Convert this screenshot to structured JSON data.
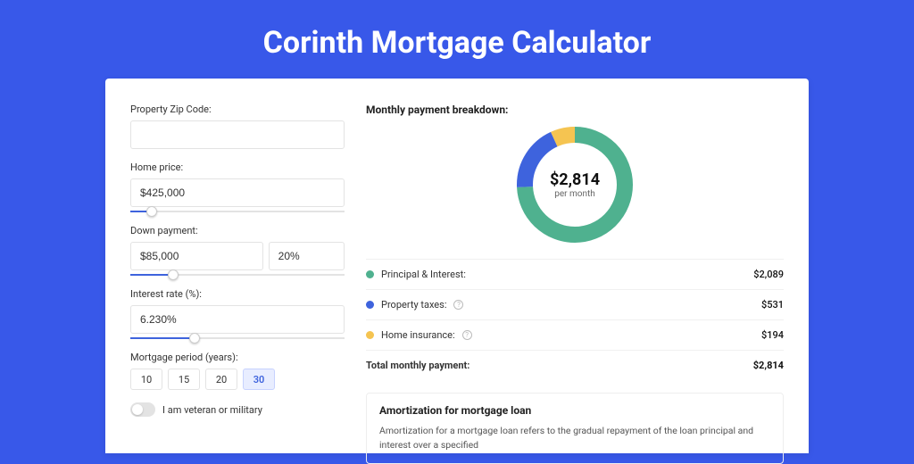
{
  "title": "Corinth Mortgage Calculator",
  "form": {
    "zip": {
      "label": "Property Zip Code:",
      "value": ""
    },
    "home_price": {
      "label": "Home price:",
      "value": "$425,000",
      "slider_pct": 10
    },
    "down": {
      "label": "Down payment:",
      "amount": "$85,000",
      "percent": "20%",
      "slider_pct": 20
    },
    "rate": {
      "label": "Interest rate (%):",
      "value": "6.230%",
      "slider_pct": 30
    },
    "period": {
      "label": "Mortgage period (years):",
      "options": [
        "10",
        "15",
        "20",
        "30"
      ],
      "active_index": 3
    },
    "veteran": {
      "label": "I am veteran or military",
      "on": false
    }
  },
  "breakdown": {
    "title": "Monthly payment breakdown:",
    "center_amount": "$2,814",
    "center_sub": "per month",
    "donut": {
      "size": 130,
      "stroke": 18,
      "bg_color": "#f2f2f2",
      "segments": [
        {
          "color": "#4fb18f",
          "fraction": 0.742
        },
        {
          "color": "#3e63dd",
          "fraction": 0.189
        },
        {
          "color": "#f5c451",
          "fraction": 0.069
        }
      ]
    },
    "items": [
      {
        "dot": "#4fb18f",
        "label": "Principal & Interest:",
        "info": false,
        "value": "$2,089"
      },
      {
        "dot": "#3e63dd",
        "label": "Property taxes:",
        "info": true,
        "value": "$531"
      },
      {
        "dot": "#f5c451",
        "label": "Home insurance:",
        "info": true,
        "value": "$194"
      }
    ],
    "total": {
      "label": "Total monthly payment:",
      "value": "$2,814"
    }
  },
  "amort": {
    "title": "Amortization for mortgage loan",
    "body": "Amortization for a mortgage loan refers to the gradual repayment of the loan principal and interest over a specified"
  }
}
